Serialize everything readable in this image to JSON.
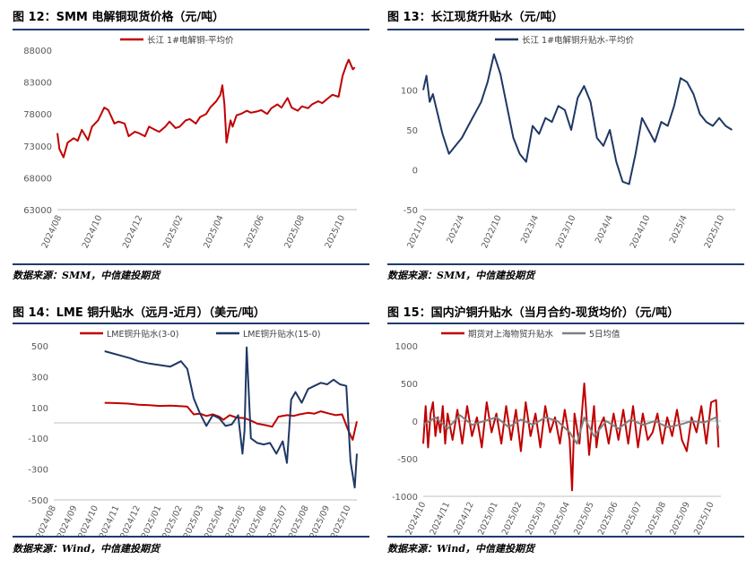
{
  "panels": [
    {
      "title": "图 12：SMM 电解铜现货价格（元/吨）",
      "source": "数据来源：SMM，中信建投期货",
      "chart_data": {
        "type": "line",
        "title": "",
        "xlabel": "",
        "ylabel": "",
        "ylim": [
          63000,
          88000
        ],
        "yticks": [
          63000,
          68000,
          73000,
          78000,
          83000,
          88000
        ],
        "x_ticks": [
          "2024/08",
          "2024/10",
          "2024/12",
          "2025/02",
          "2025/04",
          "2025/06",
          "2025/08",
          "2025/10"
        ],
        "xlim": [
          0,
          14.7
        ],
        "legend": "top-center",
        "series": [
          {
            "name": "长江 1#电解铜-平均价",
            "color": "#c00000",
            "x": [
              0,
              0.1,
              0.3,
              0.5,
              0.8,
              1.0,
              1.2,
              1.5,
              1.7,
              2.0,
              2.3,
              2.5,
              2.8,
              3.0,
              3.3,
              3.5,
              3.8,
              4.0,
              4.3,
              4.5,
              4.8,
              5.0,
              5.3,
              5.5,
              5.8,
              6.0,
              6.3,
              6.5,
              6.8,
              7.0,
              7.3,
              7.5,
              7.8,
              8.0,
              8.1,
              8.2,
              8.3,
              8.5,
              8.6,
              8.8,
              9.0,
              9.3,
              9.5,
              9.8,
              10.0,
              10.3,
              10.5,
              10.8,
              11.0,
              11.3,
              11.5,
              11.8,
              12.0,
              12.3,
              12.5,
              12.8,
              13.0,
              13.3,
              13.5,
              13.8,
              14.0,
              14.2,
              14.3,
              14.5,
              14.6
            ],
            "values": [
              75000,
              72500,
              71200,
              73500,
              74200,
              73800,
              75500,
              73900,
              76000,
              77000,
              79000,
              78600,
              76500,
              76800,
              76500,
              74500,
              75200,
              75000,
              74500,
              76000,
              75500,
              75200,
              76000,
              76800,
              75800,
              76000,
              77000,
              77200,
              76500,
              77500,
              78000,
              79000,
              80000,
              81000,
              82500,
              79500,
              73500,
              77000,
              76000,
              77800,
              78000,
              78500,
              78200,
              78400,
              78600,
              78000,
              78900,
              79500,
              79000,
              80500,
              79000,
              78500,
              79200,
              78900,
              79500,
              80000,
              79700,
              80500,
              81000,
              80700,
              84000,
              85800,
              86500,
              85000,
              85300
            ]
          }
        ]
      }
    },
    {
      "title": "图 13：长江现货升贴水（元/吨）",
      "source": "数据来源：SMM，中信建投期货",
      "chart_data": {
        "type": "line",
        "title": "",
        "xlabel": "",
        "ylabel": "",
        "ylim": [
          -50,
          150
        ],
        "yticks": [
          -50,
          0,
          50,
          100
        ],
        "x_ticks": [
          "2021/10",
          "2022/4",
          "2022/10",
          "2023/4",
          "2023/10",
          "2024/4",
          "2024/10",
          "2025/4",
          "2025/10"
        ],
        "xlim": [
          0,
          48.5
        ],
        "legend": "top-center",
        "series": [
          {
            "name": "长江 1#电解铜升贴水-平均价",
            "color": "#1f3864",
            "x": [
              0,
              0.5,
              1,
              1.5,
              2,
              3,
              4,
              5,
              6,
              7,
              8,
              9,
              10,
              11,
              12,
              13,
              14,
              15,
              16,
              17,
              18,
              19,
              20,
              21,
              22,
              23,
              24,
              25,
              26,
              27,
              28,
              29,
              30,
              31,
              32,
              33,
              34,
              35,
              36,
              37,
              38,
              39,
              40,
              41,
              42,
              43,
              44,
              45,
              46,
              47,
              48
            ],
            "values": [
              100,
              118,
              85,
              95,
              78,
              45,
              20,
              30,
              40,
              55,
              70,
              85,
              110,
              145,
              120,
              80,
              40,
              20,
              10,
              55,
              45,
              65,
              60,
              80,
              75,
              50,
              90,
              105,
              85,
              40,
              30,
              50,
              10,
              -15,
              -18,
              20,
              65,
              50,
              35,
              60,
              55,
              80,
              115,
              110,
              95,
              70,
              60,
              55,
              65,
              55,
              50
            ]
          }
        ]
      }
    },
    {
      "title": "图 14：LME 铜升贴水（远月-近月）（美元/吨）",
      "source": "数据来源：Wind，中信建投期货",
      "chart_data": {
        "type": "line",
        "title": "",
        "xlabel": "",
        "ylabel": "",
        "ylim": [
          -500,
          500
        ],
        "yticks": [
          -500,
          -300,
          -100,
          100,
          300,
          500
        ],
        "x_ticks": [
          "2024/08",
          "2024/09",
          "2024/10",
          "2024/11",
          "2024/12",
          "2025/01",
          "2025/02",
          "2025/03",
          "2025/04",
          "2025/05",
          "2025/06",
          "2025/07",
          "2025/08",
          "2025/09",
          "2025/10"
        ],
        "xlim": [
          0,
          14.3
        ],
        "legend": "top",
        "series": [
          {
            "name": "LME铜升贴水(3-0)",
            "color": "#c00000",
            "x": [
              2.4,
              3,
              3.5,
              4,
              4.5,
              5,
              5.5,
              6,
              6.3,
              6.6,
              6.9,
              7.2,
              7.5,
              7.8,
              8,
              8.3,
              8.6,
              9,
              9.3,
              9.6,
              10,
              10.3,
              10.6,
              11,
              11.3,
              11.6,
              12,
              12.3,
              12.6,
              13,
              13.3,
              13.6,
              13.9,
              14.1,
              14.3
            ],
            "values": [
              130,
              128,
              125,
              118,
              115,
              110,
              112,
              108,
              105,
              55,
              60,
              45,
              55,
              40,
              20,
              50,
              35,
              30,
              15,
              -5,
              -15,
              -25,
              40,
              50,
              45,
              55,
              65,
              60,
              75,
              60,
              50,
              55,
              -50,
              -110,
              10
            ]
          },
          {
            "name": "LME铜升贴水(15-0)",
            "color": "#1f3864",
            "x": [
              2.4,
              2.8,
              3.2,
              3.6,
              4,
              4.5,
              5,
              5.5,
              6,
              6.3,
              6.6,
              6.9,
              7.2,
              7.5,
              7.8,
              8.1,
              8.4,
              8.7,
              8.9,
              9.0,
              9.1,
              9.3,
              9.6,
              9.9,
              10.2,
              10.5,
              10.8,
              11.0,
              11.2,
              11.4,
              11.7,
              12,
              12.3,
              12.6,
              12.9,
              13.2,
              13.5,
              13.8,
              14.0,
              14.2,
              14.3
            ],
            "values": [
              465,
              450,
              435,
              420,
              400,
              385,
              375,
              365,
              400,
              350,
              160,
              60,
              -20,
              50,
              30,
              -20,
              -10,
              50,
              -200,
              -50,
              490,
              -100,
              -130,
              -140,
              -130,
              -200,
              -120,
              -260,
              150,
              200,
              130,
              220,
              240,
              260,
              250,
              280,
              250,
              240,
              -250,
              -420,
              -200
            ]
          }
        ]
      }
    },
    {
      "title": "图 15：国内沪铜升贴水（当月合约-现货均价）（元/吨）",
      "source": "数据来源：Wind，中信建投期货",
      "chart_data": {
        "type": "line",
        "title": "",
        "xlabel": "",
        "ylabel": "",
        "ylim": [
          -1000,
          1000
        ],
        "yticks": [
          -1000,
          -500,
          0,
          500,
          1000
        ],
        "x_ticks": [
          "2024/10",
          "2024/11",
          "2024/12",
          "2025/01",
          "2025/02",
          "2025/03",
          "2025/04",
          "2025/05",
          "2025/06",
          "2025/07",
          "2025/08",
          "2025/09",
          "2025/10"
        ],
        "xlim": [
          0,
          12.2
        ],
        "legend": "top",
        "series": [
          {
            "name": "期货对上海物贸升贴水",
            "color": "#c00000",
            "x": [
              0,
              0.1,
              0.2,
              0.3,
              0.4,
              0.5,
              0.6,
              0.7,
              0.8,
              0.9,
              1.0,
              1.2,
              1.4,
              1.6,
              1.8,
              2.0,
              2.2,
              2.4,
              2.6,
              2.8,
              3.0,
              3.2,
              3.4,
              3.6,
              3.8,
              4.0,
              4.2,
              4.4,
              4.6,
              4.8,
              5.0,
              5.2,
              5.4,
              5.6,
              5.8,
              6.0,
              6.1,
              6.2,
              6.4,
              6.6,
              6.8,
              7.0,
              7.1,
              7.2,
              7.4,
              7.6,
              7.8,
              8.0,
              8.2,
              8.4,
              8.6,
              8.8,
              9.0,
              9.2,
              9.4,
              9.6,
              9.8,
              10.0,
              10.2,
              10.4,
              10.6,
              10.8,
              11.0,
              11.2,
              11.4,
              11.6,
              11.8,
              12.0,
              12.1
            ],
            "values": [
              -300,
              200,
              -350,
              100,
              250,
              -200,
              50,
              -150,
              200,
              -300,
              100,
              -250,
              150,
              -300,
              200,
              -200,
              50,
              -350,
              250,
              -150,
              100,
              -300,
              200,
              -250,
              150,
              -400,
              250,
              -200,
              100,
              -350,
              200,
              -150,
              50,
              -300,
              150,
              -250,
              -920,
              100,
              -300,
              500,
              -450,
              200,
              -350,
              -100,
              50,
              -300,
              100,
              -250,
              150,
              -300,
              200,
              -350,
              100,
              -250,
              -150,
              100,
              -300,
              50,
              -200,
              150,
              -250,
              -400,
              50,
              -150,
              200,
              -300,
              250,
              280,
              -350
            ]
          },
          {
            "name": "5日均值",
            "color": "#808080",
            "x": [
              0,
              0.5,
              1,
              1.5,
              2,
              2.5,
              3,
              3.5,
              4,
              4.5,
              5,
              5.5,
              6,
              6.3,
              6.6,
              7,
              7.5,
              8,
              8.5,
              9,
              9.5,
              10,
              10.5,
              11,
              11.5,
              12,
              12.1
            ],
            "values": [
              -50,
              50,
              -100,
              80,
              -50,
              0,
              50,
              -80,
              20,
              -50,
              50,
              0,
              -150,
              -300,
              50,
              -200,
              0,
              -100,
              20,
              -50,
              0,
              -80,
              -50,
              0,
              -20,
              50,
              -100
            ]
          }
        ]
      }
    }
  ]
}
